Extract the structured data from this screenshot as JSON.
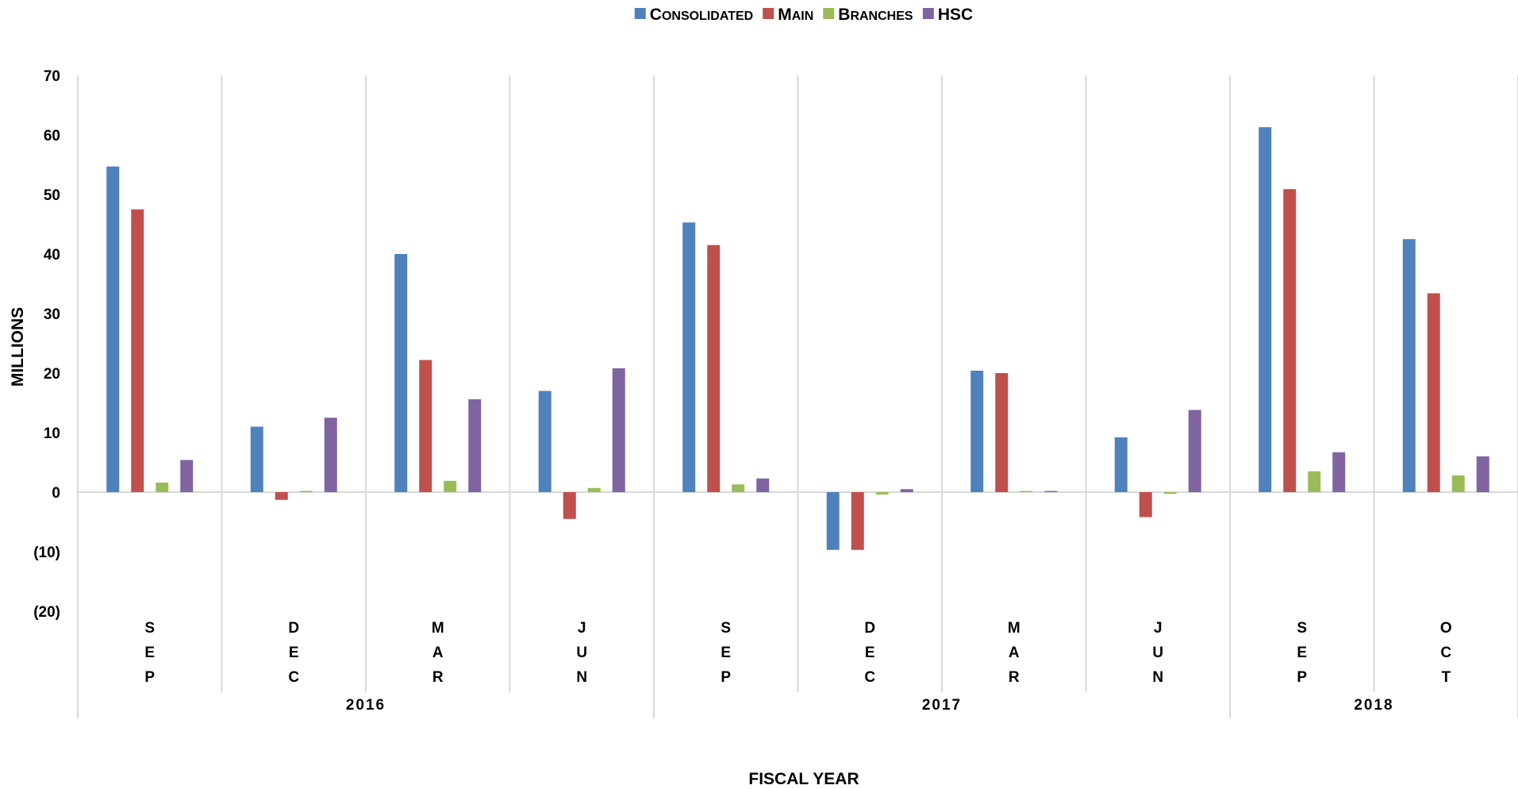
{
  "chart_data": {
    "type": "bar",
    "xlabel": "FISCAL YEAR",
    "ylabel": "MILLIONS",
    "ylim": [
      -20,
      70
    ],
    "yticks": [
      70,
      60,
      50,
      40,
      30,
      20,
      10,
      0,
      -10,
      -20
    ],
    "ytick_labels": [
      "70",
      "60",
      "50",
      "40",
      "30",
      "20",
      "10",
      "0",
      "(10)",
      "(20)"
    ],
    "legend_position": "top-center",
    "categories": [
      "SEP",
      "DEC",
      "MAR",
      "JUN",
      "SEP",
      "DEC",
      "MAR",
      "JUN",
      "SEP",
      "OCT"
    ],
    "groups": [
      {
        "label": "2016",
        "count": 4
      },
      {
        "label": "2017",
        "count": 4
      },
      {
        "label": "2018",
        "count": 2
      }
    ],
    "series": [
      {
        "name": "Consolidated",
        "color": "#4F81BD",
        "values": [
          54.7,
          11.0,
          40.0,
          17.0,
          45.3,
          -9.7,
          20.4,
          9.2,
          61.3,
          42.5
        ]
      },
      {
        "name": "Main",
        "color": "#C0504D",
        "values": [
          47.5,
          -1.3,
          22.2,
          -4.5,
          41.5,
          -9.7,
          20.0,
          -4.2,
          50.9,
          33.4
        ]
      },
      {
        "name": "Branches",
        "color": "#9BBB59",
        "values": [
          1.6,
          0.0,
          1.9,
          0.7,
          1.3,
          -0.4,
          0.15,
          -0.3,
          3.5,
          2.8
        ]
      },
      {
        "name": "HSC",
        "color": "#8064A2",
        "values": [
          5.4,
          12.5,
          15.6,
          20.8,
          2.3,
          0.5,
          0.2,
          13.8,
          6.7,
          6.0
        ]
      }
    ],
    "gridline_color": "#D9D9D9"
  }
}
